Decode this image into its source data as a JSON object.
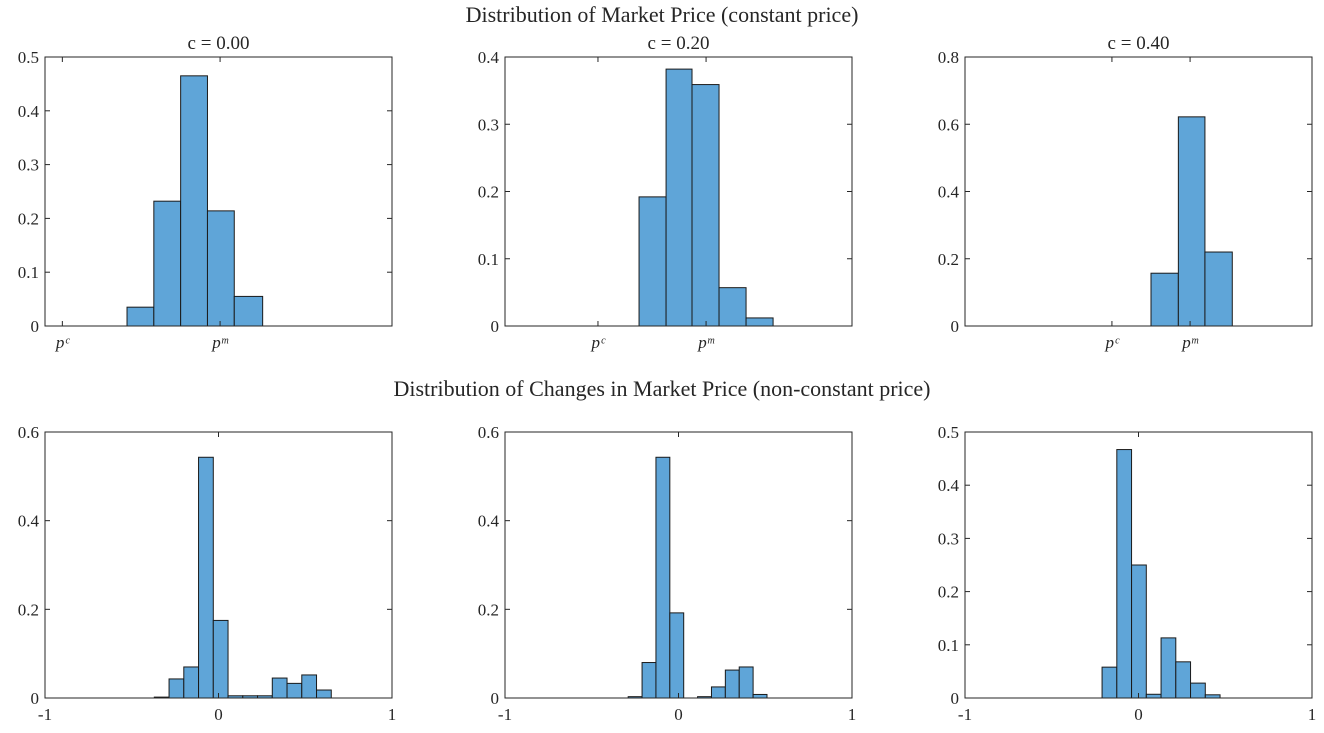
{
  "titles": [
    "Distribution of Market Price (constant price)",
    "Distribution of Changes in Market Price (non-constant price)"
  ],
  "chart_data": [
    {
      "type": "histogram",
      "title": "c = 0.00",
      "color": "#5fa5d8",
      "bins": [
        0.41,
        0.58,
        0.75,
        0.92,
        1.09,
        1.27
      ],
      "values": [
        0.035,
        0.232,
        0.465,
        0.214,
        0.055
      ],
      "xlim": [
        -0.11,
        2.09
      ],
      "xticks": [
        {
          "value": 0,
          "label": "pᶜ"
        },
        {
          "value": 1,
          "label": "pᵐ"
        }
      ],
      "ylim": [
        0,
        0.5
      ],
      "yticks": [
        0,
        0.1,
        0.2,
        0.3,
        0.4,
        0.5
      ]
    },
    {
      "type": "histogram",
      "title": "c = 0.20",
      "color": "#5fa5d8",
      "bins": [
        0.38,
        0.63,
        0.87,
        1.12,
        1.37,
        1.62
      ],
      "values": [
        0.192,
        0.382,
        0.359,
        0.057,
        0.012
      ],
      "xlim": [
        -0.86,
        2.35
      ],
      "xticks": [
        {
          "value": 0,
          "label": "pᶜ"
        },
        {
          "value": 1,
          "label": "pᵐ"
        }
      ],
      "ylim": [
        0,
        0.4
      ],
      "yticks": [
        0,
        0.1,
        0.2,
        0.3,
        0.4
      ]
    },
    {
      "type": "histogram",
      "title": "c = 0.40",
      "color": "#5fa5d8",
      "bins": [
        0.5,
        0.85,
        1.19,
        1.54
      ],
      "values": [
        0.157,
        0.622,
        0.22
      ],
      "xlim": [
        -1.88,
        2.56
      ],
      "xticks": [
        {
          "value": 0,
          "label": "pᶜ"
        },
        {
          "value": 1,
          "label": "pᵐ"
        }
      ],
      "ylim": [
        0,
        0.8
      ],
      "yticks": [
        0,
        0.2,
        0.4,
        0.6,
        0.8
      ]
    },
    {
      "type": "histogram",
      "color": "#5fa5d8",
      "bins": [
        -0.37,
        -0.285,
        -0.2,
        -0.115,
        -0.03,
        0.055,
        0.14,
        0.225,
        0.31,
        0.395,
        0.48,
        0.565,
        0.65
      ],
      "values": [
        0.002,
        0.043,
        0.07,
        0.543,
        0.175,
        0.005,
        0.005,
        0.005,
        0.045,
        0.033,
        0.052,
        0.018
      ],
      "xlim": [
        -1,
        1
      ],
      "xticks": [
        -1,
        0,
        1
      ],
      "ylim": [
        0,
        0.6
      ],
      "yticks": [
        0,
        0.2,
        0.4,
        0.6
      ]
    },
    {
      "type": "histogram",
      "color": "#5fa5d8",
      "bins": [
        -0.29,
        -0.21,
        -0.13,
        -0.05,
        0.03,
        0.11,
        0.19,
        0.27,
        0.35,
        0.43,
        0.51
      ],
      "values": [
        0.003,
        0.08,
        0.543,
        0.192,
        0,
        0.003,
        0.025,
        0.063,
        0.07,
        0.008
      ],
      "xlim": [
        -1,
        1
      ],
      "xticks": [
        -1,
        0,
        1
      ],
      "ylim": [
        0,
        0.6
      ],
      "yticks": [
        0,
        0.2,
        0.4,
        0.6
      ]
    },
    {
      "type": "histogram",
      "color": "#5fa5d8",
      "bins": [
        -0.21,
        -0.125,
        -0.04,
        0.045,
        0.13,
        0.215,
        0.3,
        0.385,
        0.47
      ],
      "values": [
        0.058,
        0.467,
        0.25,
        0.007,
        0.113,
        0.068,
        0.028,
        0.006
      ],
      "xlim": [
        -1,
        1
      ],
      "xticks": [
        -1,
        0,
        1
      ],
      "ylim": [
        0,
        0.5
      ],
      "yticks": [
        0,
        0.1,
        0.2,
        0.3,
        0.4,
        0.5
      ]
    }
  ]
}
